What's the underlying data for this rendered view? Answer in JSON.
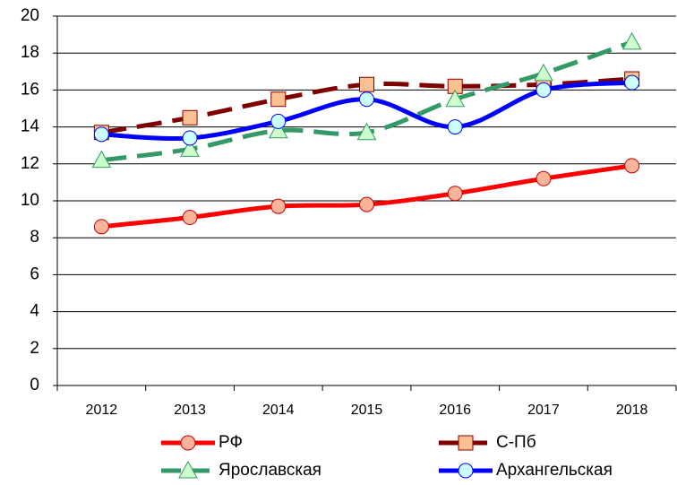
{
  "chart_data": {
    "type": "line",
    "smooth": true,
    "categories": [
      "2012",
      "2013",
      "2014",
      "2015",
      "2016",
      "2017",
      "2018"
    ],
    "ylim": [
      0,
      20
    ],
    "yticks": [
      0,
      2,
      4,
      6,
      8,
      10,
      12,
      14,
      16,
      18,
      20
    ],
    "grid": true,
    "legend": "bottom",
    "series": [
      {
        "name": "РФ",
        "color": "#ff0000",
        "marker": "circle",
        "marker_color": "#fbb49a",
        "dashed": false,
        "values": [
          8.6,
          9.1,
          9.7,
          9.8,
          10.4,
          11.2,
          11.9
        ]
      },
      {
        "name": "С-Пб",
        "color": "#800000",
        "marker": "square",
        "marker_color": "#fbc08f",
        "dashed": true,
        "values": [
          13.7,
          14.5,
          15.5,
          16.3,
          16.2,
          16.3,
          16.6
        ]
      },
      {
        "name": "Ярославская",
        "color": "#339966",
        "marker": "triangle",
        "marker_color": "#ccffcc",
        "dashed": true,
        "values": [
          12.2,
          12.8,
          13.8,
          13.7,
          15.5,
          16.9,
          18.6
        ]
      },
      {
        "name": "Архангельская",
        "color": "#0000ff",
        "marker": "circle",
        "marker_color": "#ccffff",
        "dashed": false,
        "values": [
          13.6,
          13.4,
          14.3,
          15.5,
          14.0,
          16.0,
          16.4
        ]
      }
    ]
  }
}
